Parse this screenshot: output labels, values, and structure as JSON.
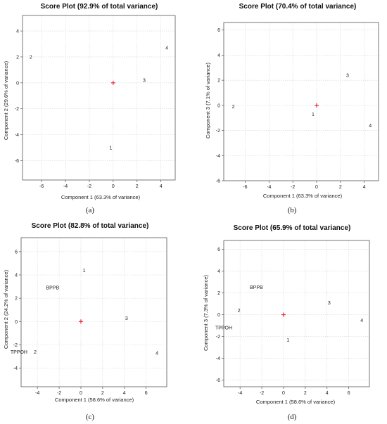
{
  "chart_data": [
    {
      "panel": "(a)",
      "type": "scatter",
      "title": "Score Plot (92.9% of total variance)",
      "xlabel": "Component 1 (63.3% of variance)",
      "ylabel": "Component 2 (29.6% of variance)",
      "xlim": [
        -7.6,
        5.2
      ],
      "ylim": [
        -7.5,
        5.2
      ],
      "xticks": [
        -6,
        -4,
        -2,
        0,
        2,
        4
      ],
      "yticks": [
        -6,
        -4,
        -2,
        0,
        2,
        4
      ],
      "grid": true,
      "centroid": [
        0,
        0
      ],
      "points": [
        {
          "label": "2",
          "x": -6.9,
          "y": 2.0
        },
        {
          "label": "3",
          "x": 2.6,
          "y": 0.2
        },
        {
          "label": "4",
          "x": 4.5,
          "y": 2.7
        },
        {
          "label": "1",
          "x": -0.2,
          "y": -5.0
        }
      ]
    },
    {
      "panel": "(b)",
      "type": "scatter",
      "title": "Score Plot (70.4% of total variance)",
      "xlabel": "Component 1 (63.3% of variance)",
      "ylabel": "Component 3 (7.1% of variance)",
      "xlim": [
        -7.8,
        5.2
      ],
      "ylim": [
        -6.0,
        6.6
      ],
      "xticks": [
        -6,
        -4,
        -2,
        0,
        2,
        4
      ],
      "yticks": [
        -6,
        -4,
        -2,
        0,
        2,
        4,
        6
      ],
      "grid": true,
      "centroid": [
        0,
        0
      ],
      "points": [
        {
          "label": "2",
          "x": -7.0,
          "y": -0.1
        },
        {
          "label": "1",
          "x": -0.3,
          "y": -0.7
        },
        {
          "label": "3",
          "x": 2.6,
          "y": 2.4
        },
        {
          "label": "4",
          "x": 4.5,
          "y": -1.6
        }
      ]
    },
    {
      "panel": "(c)",
      "type": "scatter",
      "title": "Score Plot (82.8% of total variance)",
      "xlabel": "Component 1 (58.6% of variance)",
      "ylabel": "Component 2 (24.2% of variance)",
      "xlim": [
        -5.5,
        7.9
      ],
      "ylim": [
        -5.6,
        7.2
      ],
      "xticks": [
        -4,
        -2,
        0,
        2,
        4,
        6
      ],
      "yticks": [
        -4,
        -2,
        0,
        2,
        4,
        6
      ],
      "grid": true,
      "centroid": [
        0,
        0
      ],
      "points": [
        {
          "label": "1",
          "x": 0.3,
          "y": 4.4
        },
        {
          "label": "BPPB",
          "x": -2.6,
          "y": 2.9
        },
        {
          "label": "3",
          "x": 4.2,
          "y": 0.3
        },
        {
          "label": "TPPOH",
          "x": -5.7,
          "y": -2.6
        },
        {
          "label": "2",
          "x": -4.2,
          "y": -2.6
        },
        {
          "label": "4",
          "x": 7.0,
          "y": -2.7
        }
      ]
    },
    {
      "panel": "(d)",
      "type": "scatter",
      "title": "Score Plot (65.9% of total variance)",
      "xlabel": "Component 1 (58.6% of variance)",
      "ylabel": "Component 3 (7.3% of variance)",
      "xlim": [
        -5.5,
        7.9
      ],
      "ylim": [
        -6.6,
        6.8
      ],
      "xticks": [
        -4,
        -2,
        0,
        2,
        4,
        6
      ],
      "yticks": [
        -6,
        -4,
        -2,
        0,
        2,
        4,
        6
      ],
      "grid": true,
      "centroid": [
        0,
        0
      ],
      "points": [
        {
          "label": "BPPB",
          "x": -2.5,
          "y": 2.5
        },
        {
          "label": "2",
          "x": -4.1,
          "y": 0.4
        },
        {
          "label": "3",
          "x": 4.2,
          "y": 1.1
        },
        {
          "label": "TPPOH",
          "x": -5.5,
          "y": -1.2
        },
        {
          "label": "4",
          "x": 7.2,
          "y": -0.5
        },
        {
          "label": "1",
          "x": 0.4,
          "y": -2.3
        }
      ]
    }
  ],
  "colors": {
    "centroid": "#e8262b",
    "grid": "#d6d6d6",
    "axis": "#555555",
    "text": "#222222"
  }
}
